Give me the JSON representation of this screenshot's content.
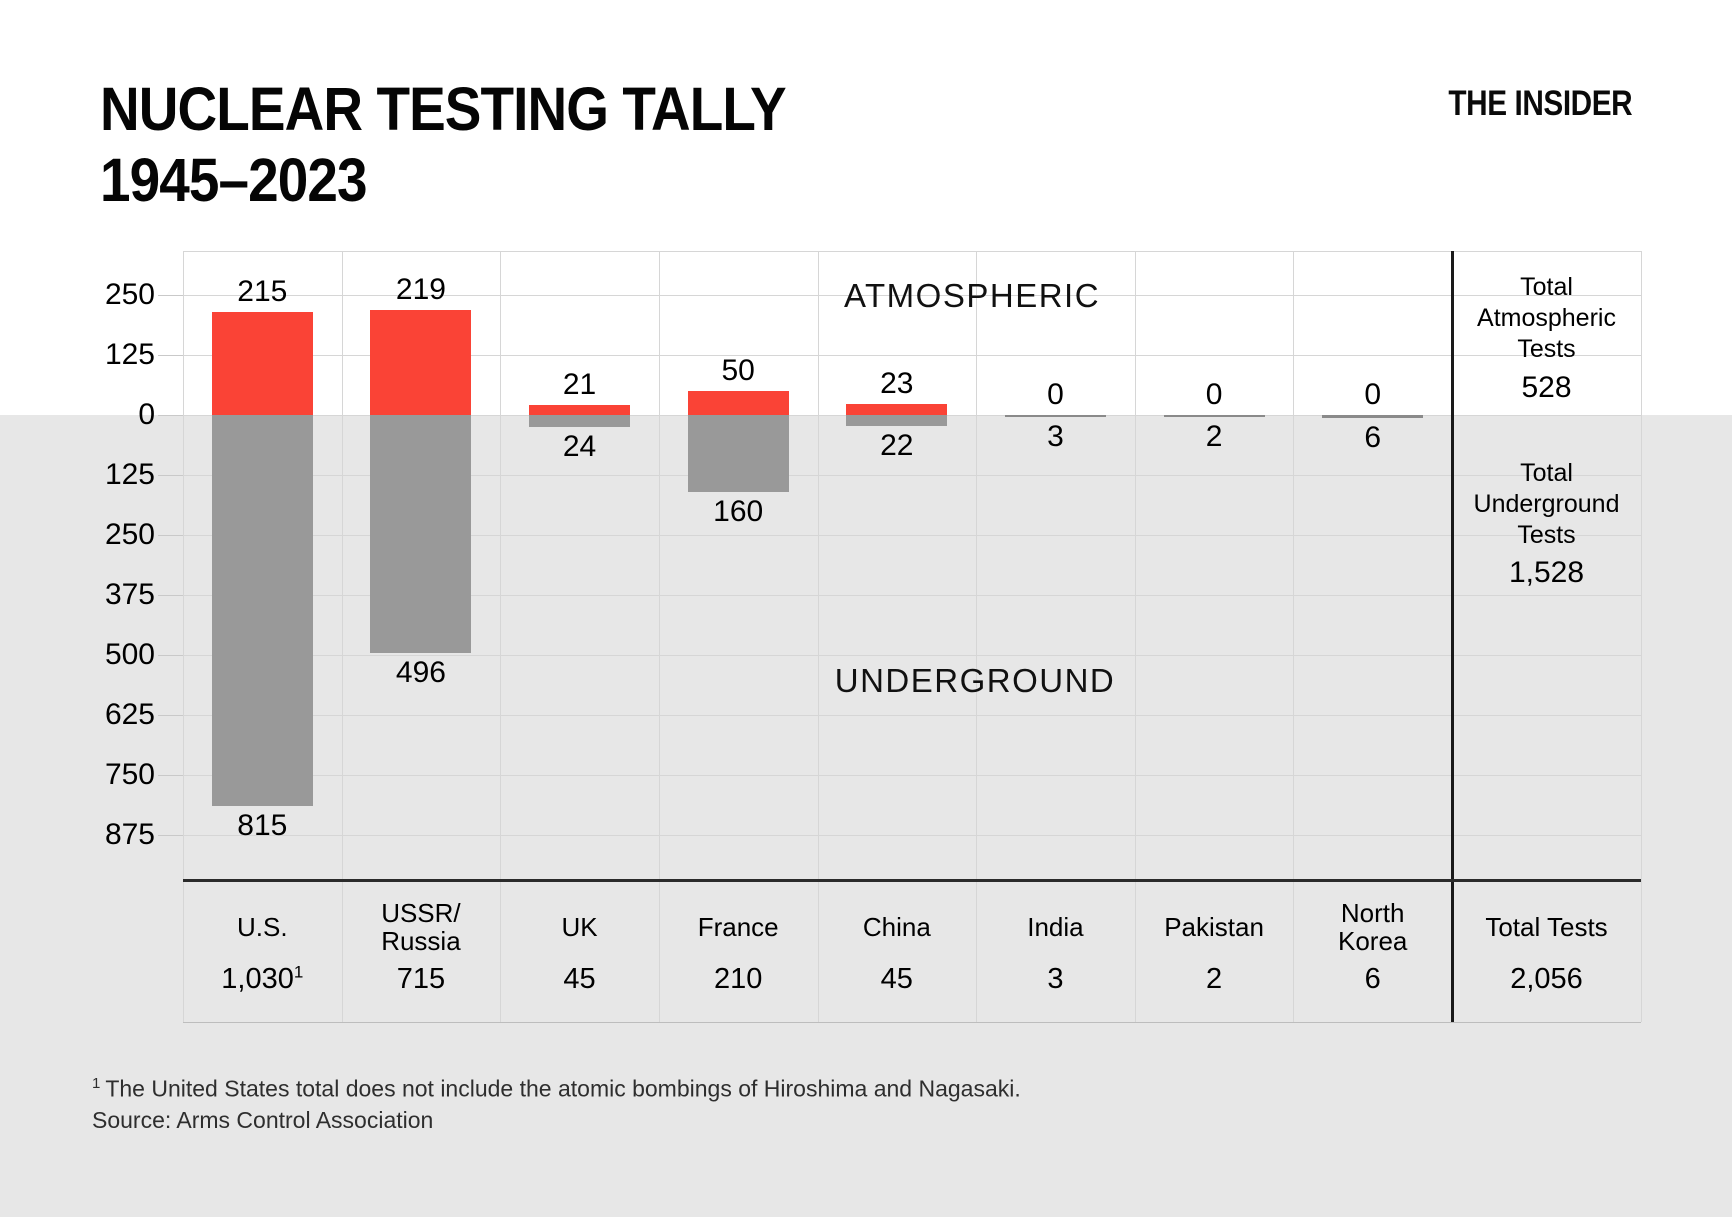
{
  "header": {
    "title_line1": "NUCLEAR TESTING TALLY",
    "title_line2": "1945–2023",
    "brand": "THE INSIDER"
  },
  "chart_data": {
    "type": "bar",
    "title": "NUCLEAR TESTING TALLY 1945–2023",
    "grid": true,
    "legend_position": "none",
    "axis_unit_per_gridline": 125,
    "axis_tick_labels": [
      "250",
      "125",
      "0",
      "125",
      "250",
      "375",
      "500",
      "625",
      "750",
      "875"
    ],
    "categories": [
      "U.S.",
      "USSR/\nRussia",
      "UK",
      "France",
      "China",
      "India",
      "Pakistan",
      "North\nKorea"
    ],
    "series": [
      {
        "name": "ATMOSPHERIC",
        "color": "#fa4336",
        "values": [
          215,
          219,
          21,
          50,
          23,
          0,
          0,
          0
        ]
      },
      {
        "name": "UNDERGROUND",
        "color": "#999999",
        "values": [
          815,
          496,
          24,
          160,
          22,
          3,
          2,
          6
        ]
      }
    ],
    "category_totals": [
      "1,030",
      "715",
      "45",
      "210",
      "45",
      "3",
      "2",
      "6"
    ],
    "category_total_sups": [
      "1",
      "",
      "",
      "",
      "",
      "",
      "",
      ""
    ],
    "zone_label_top": "ATMOSPHERIC",
    "zone_label_bottom": "UNDERGROUND",
    "summary_column": {
      "atmospheric_label": "Total\nAtmospheric\nTests",
      "atmospheric_value": "528",
      "underground_label": "Total\nUnderground\nTests",
      "underground_value": "1,528",
      "total_label": "Total Tests",
      "total_value": "2,056"
    }
  },
  "notes": {
    "marker": "1",
    "line1": "The United States total does not include the atomic bombings of Hiroshima and Nagasaki.",
    "line2": "Source: Arms Control Association"
  },
  "colors": {
    "atmospheric": "#fa4336",
    "underground": "#999999",
    "underground_small": "#8a8a8a",
    "lower_background": "#e7e7e7",
    "gridline": "#d6d6d6",
    "separator": "#1a1a1a"
  }
}
